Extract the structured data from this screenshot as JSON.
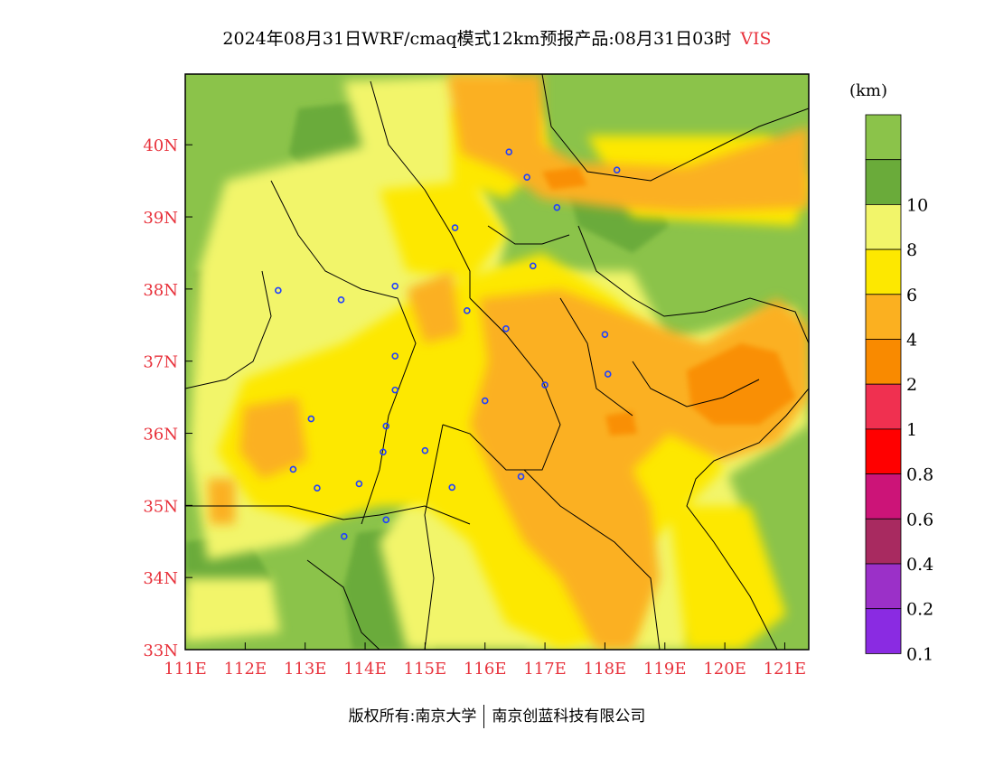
{
  "title": {
    "main": "2024年08月31日WRF/cmaq模式12km预报产品:08月31日03时",
    "variable": "VIS"
  },
  "unit": "(km)",
  "footer": {
    "left": "版权所有:南京大学",
    "right": "南京创蓝科技有限公司"
  },
  "axes": {
    "lon_labels": [
      "111E",
      "112E",
      "113E",
      "114E",
      "115E",
      "116E",
      "117E",
      "118E",
      "119E",
      "120E",
      "121E"
    ],
    "lat_labels": [
      "33N",
      "34N",
      "35N",
      "36N",
      "37N",
      "38N",
      "39N",
      "40N"
    ],
    "lon_range": [
      111,
      121.4
    ],
    "lat_range": [
      33,
      40.98
    ],
    "label_color": "#e8323c"
  },
  "legend": {
    "levels": [
      {
        "label": "",
        "color": "#8bc34a"
      },
      {
        "label": "10",
        "color": "#6aab3a"
      },
      {
        "label": "8",
        "color": "#f2f56a"
      },
      {
        "label": "6",
        "color": "#fde800"
      },
      {
        "label": "4",
        "color": "#fbb020"
      },
      {
        "label": "2",
        "color": "#f98a00"
      },
      {
        "label": "1",
        "color": "#f03050"
      },
      {
        "label": "0.8",
        "color": "#ff0000"
      },
      {
        "label": "0.6",
        "color": "#cc1478"
      },
      {
        "label": "0.4",
        "color": "#a82a60"
      },
      {
        "label": "0.2",
        "color": "#9b30c8"
      },
      {
        "label": "0.1",
        "color": "#8a2be2"
      }
    ]
  },
  "cities": [
    {
      "lon": 116.4,
      "lat": 39.9
    },
    {
      "lon": 116.7,
      "lat": 39.55
    },
    {
      "lon": 117.2,
      "lat": 39.13
    },
    {
      "lon": 118.2,
      "lat": 39.65
    },
    {
      "lon": 115.5,
      "lat": 38.85
    },
    {
      "lon": 116.8,
      "lat": 38.32
    },
    {
      "lon": 114.5,
      "lat": 38.04
    },
    {
      "lon": 112.55,
      "lat": 37.98
    },
    {
      "lon": 113.6,
      "lat": 37.85
    },
    {
      "lon": 115.7,
      "lat": 37.7
    },
    {
      "lon": 116.35,
      "lat": 37.45
    },
    {
      "lon": 118.0,
      "lat": 37.37
    },
    {
      "lon": 114.5,
      "lat": 37.07
    },
    {
      "lon": 118.05,
      "lat": 36.82
    },
    {
      "lon": 117.0,
      "lat": 36.67
    },
    {
      "lon": 114.5,
      "lat": 36.6
    },
    {
      "lon": 116.0,
      "lat": 36.45
    },
    {
      "lon": 113.1,
      "lat": 36.2
    },
    {
      "lon": 114.35,
      "lat": 36.1
    },
    {
      "lon": 115.0,
      "lat": 35.76
    },
    {
      "lon": 114.3,
      "lat": 35.74
    },
    {
      "lon": 112.8,
      "lat": 35.5
    },
    {
      "lon": 116.6,
      "lat": 35.4
    },
    {
      "lon": 113.9,
      "lat": 35.3
    },
    {
      "lon": 113.2,
      "lat": 35.24
    },
    {
      "lon": 115.45,
      "lat": 35.25
    },
    {
      "lon": 114.35,
      "lat": 34.8
    },
    {
      "lon": 113.65,
      "lat": 34.57
    }
  ]
}
